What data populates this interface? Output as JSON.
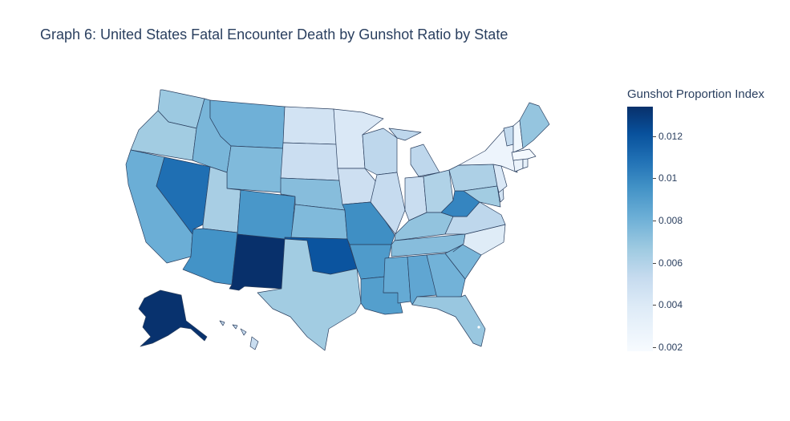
{
  "title": "Graph 6: United States Fatal Encounter Death by Gunshot Ratio by State",
  "colorbar": {
    "title": "Gunshot Proportion Index",
    "ticks": [
      {
        "label": "0.012",
        "value": 0.012
      },
      {
        "label": "0.01",
        "value": 0.01
      },
      {
        "label": "0.008",
        "value": 0.008
      },
      {
        "label": "0.006",
        "value": 0.006
      },
      {
        "label": "0.004",
        "value": 0.004
      },
      {
        "label": "0.002",
        "value": 0.002
      }
    ],
    "min": 0.0018,
    "max": 0.0134,
    "colorscale": [
      "#f7fbff",
      "#deebf7",
      "#c6dbef",
      "#9ecae1",
      "#6baed6",
      "#4292c6",
      "#2171b5",
      "#08519c",
      "#08306b"
    ]
  },
  "states": {
    "WA": 0.0062,
    "OR": 0.006,
    "CA": 0.0076,
    "NV": 0.0106,
    "ID": 0.0072,
    "MT": 0.0075,
    "WY": 0.007,
    "UT": 0.0058,
    "AZ": 0.009,
    "CO": 0.0088,
    "NM": 0.0134,
    "ND": 0.004,
    "SD": 0.0044,
    "NE": 0.0068,
    "KS": 0.007,
    "OK": 0.0118,
    "TX": 0.006,
    "MN": 0.0035,
    "IA": 0.0043,
    "MO": 0.0092,
    "AR": 0.0086,
    "LA": 0.0084,
    "WI": 0.005,
    "IL": 0.0047,
    "MI": 0.005,
    "IN": 0.0045,
    "OH": 0.0055,
    "KY": 0.0065,
    "TN": 0.0068,
    "MS": 0.0078,
    "AL": 0.008,
    "GA": 0.0074,
    "FL": 0.0063,
    "SC": 0.0072,
    "NC": 0.0032,
    "VA": 0.005,
    "WV": 0.0096,
    "PA": 0.0056,
    "NY": 0.0024,
    "ME": 0.0064,
    "VT": 0.0048,
    "NH": 0.0022,
    "MA": 0.002,
    "CT": 0.0025,
    "RI": 0.0028,
    "NJ": 0.0035,
    "DE": 0.004,
    "MD": 0.006,
    "AK": 0.0133,
    "HI": 0.0045
  }
}
